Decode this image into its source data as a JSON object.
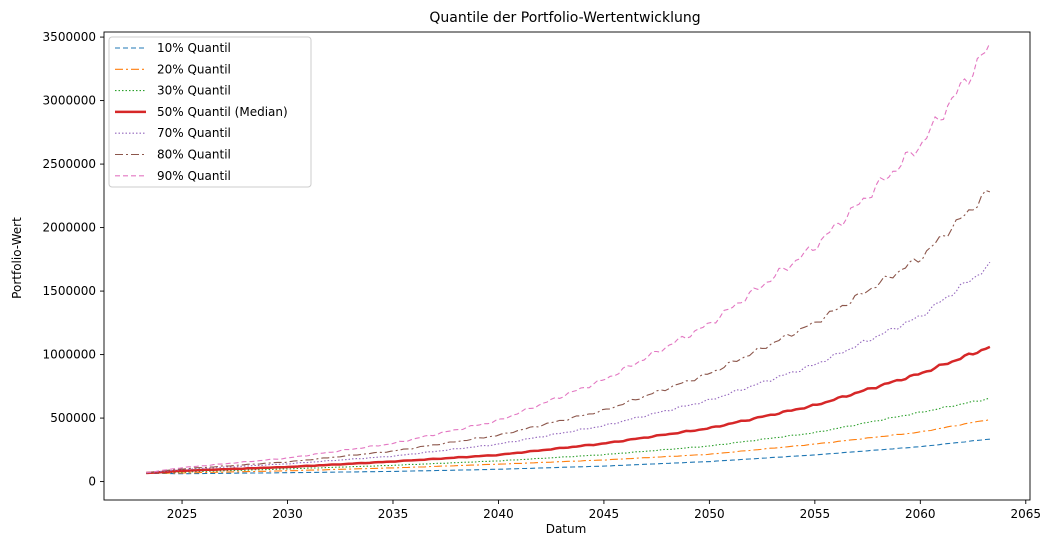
{
  "chart_data": {
    "type": "line",
    "title": "Quantile der Portfolio-Wertentwicklung",
    "xlabel": "Datum",
    "ylabel": "Portfolio-Wert",
    "xlim": [
      2021.3,
      2065.2
    ],
    "ylim": [
      -145000,
      3540000
    ],
    "x_ticks": [
      2025,
      2030,
      2035,
      2040,
      2045,
      2050,
      2055,
      2060,
      2065
    ],
    "y_ticks": [
      0,
      500000,
      1000000,
      1500000,
      2000000,
      2500000,
      3000000,
      3500000
    ],
    "grid": false,
    "legend_position": "top-left",
    "x": [
      2023.3,
      2025,
      2030,
      2035,
      2040,
      2045,
      2050,
      2055,
      2060,
      2063.3
    ],
    "series": [
      {
        "name": "10% Quantil",
        "color": "#1f77b4",
        "dash": "dashed",
        "values": [
          65000,
          62000,
          70000,
          80000,
          97000,
          122000,
          158000,
          210000,
          275000,
          335000
        ]
      },
      {
        "name": "20% Quantil",
        "color": "#ff7f0e",
        "dash": "dashdot",
        "values": [
          65000,
          68000,
          85000,
          108000,
          137000,
          170000,
          215000,
          295000,
          390000,
          490000
        ]
      },
      {
        "name": "30% Quantil",
        "color": "#2ca02c",
        "dash": "dotted",
        "values": [
          66000,
          75000,
          100000,
          128000,
          163000,
          212000,
          280000,
          385000,
          545000,
          655000
        ]
      },
      {
        "name": "50% Quantil (Median)",
        "color": "#d62728",
        "dash": "solid",
        "values": [
          67000,
          85000,
          115000,
          158000,
          210000,
          300000,
          420000,
          600000,
          850000,
          1060000
        ]
      },
      {
        "name": "70% Quantil",
        "color": "#9467bd",
        "dash": "dotted",
        "values": [
          68000,
          95000,
          140000,
          200000,
          295000,
          440000,
          640000,
          920000,
          1300000,
          1700000
        ]
      },
      {
        "name": "80% Quantil",
        "color": "#8c564b",
        "dash": "dashdot",
        "values": [
          69000,
          100000,
          155000,
          240000,
          365000,
          560000,
          850000,
          1250000,
          1760000,
          2290000
        ]
      },
      {
        "name": "90% Quantil",
        "color": "#e377c2",
        "dash": "dashed",
        "values": [
          70000,
          110000,
          185000,
          300000,
          480000,
          800000,
          1240000,
          1850000,
          2650000,
          3430000
        ]
      }
    ]
  }
}
